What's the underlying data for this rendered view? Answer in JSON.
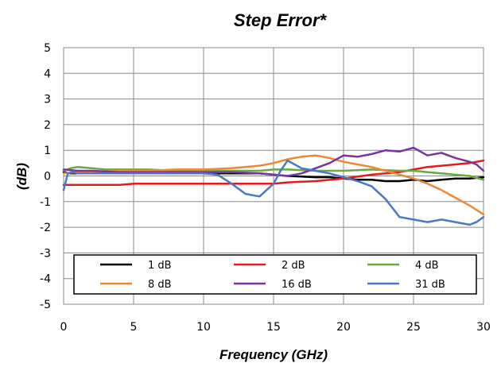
{
  "chart_data": {
    "type": "line",
    "title": "Step Error*",
    "xlabel": "Frequency  (GHz)",
    "ylabel": "(dB)",
    "xlim": [
      0,
      30
    ],
    "ylim": [
      -5,
      5
    ],
    "xticks": [
      0,
      5,
      10,
      15,
      20,
      25,
      30
    ],
    "xtick_labels": [
      "0",
      "5",
      "10",
      "15",
      "20",
      "25",
      "30"
    ],
    "yticks": [
      5,
      4,
      3,
      2,
      1,
      0,
      -1,
      -2,
      -3,
      -4,
      -5
    ],
    "ytick_labels": [
      "5",
      "4",
      "3",
      "2",
      "1",
      "0",
      "-1",
      "-2",
      "-3",
      "-4",
      "-5"
    ],
    "grid": true,
    "legend_position": "bottom-inside",
    "series": [
      {
        "name": "1 dB",
        "color": "#000000",
        "x": [
          0,
          0.5,
          1,
          2,
          4,
          6,
          8,
          10,
          12,
          14,
          15,
          16,
          18,
          19,
          20,
          21,
          22,
          23,
          24,
          25,
          26,
          27,
          28,
          29,
          30
        ],
        "y": [
          0.15,
          0.1,
          0.1,
          0.15,
          0.1,
          0.1,
          0.15,
          0.1,
          0.1,
          0.1,
          0.05,
          0.0,
          -0.05,
          -0.05,
          -0.1,
          -0.15,
          -0.15,
          -0.2,
          -0.2,
          -0.15,
          -0.2,
          -0.15,
          -0.1,
          -0.1,
          -0.05
        ]
      },
      {
        "name": "2 dB",
        "color": "#e8191c",
        "x": [
          0,
          2,
          4,
          5,
          6,
          8,
          10,
          12,
          14,
          15,
          16,
          18,
          20,
          22,
          24,
          25,
          26,
          27,
          28,
          29,
          29.5,
          30
        ],
        "y": [
          -0.35,
          -0.35,
          -0.35,
          -0.3,
          -0.3,
          -0.3,
          -0.3,
          -0.3,
          -0.3,
          -0.3,
          -0.25,
          -0.2,
          -0.1,
          0.05,
          0.15,
          0.25,
          0.35,
          0.4,
          0.45,
          0.5,
          0.55,
          0.6
        ]
      },
      {
        "name": "4 dB",
        "color": "#6aa840",
        "x": [
          0,
          0.5,
          1,
          2,
          3,
          4,
          6,
          8,
          10,
          12,
          14,
          15,
          16,
          18,
          20,
          22,
          24,
          25,
          26,
          27,
          28,
          29,
          30
        ],
        "y": [
          0.2,
          0.3,
          0.35,
          0.3,
          0.25,
          0.25,
          0.25,
          0.2,
          0.2,
          0.2,
          0.2,
          0.25,
          0.25,
          0.2,
          0.2,
          0.25,
          0.2,
          0.2,
          0.15,
          0.1,
          0.05,
          0.0,
          -0.15
        ]
      },
      {
        "name": "8 dB",
        "color": "#ee8833",
        "x": [
          0,
          1,
          2,
          4,
          6,
          8,
          10,
          12,
          14,
          15,
          16,
          17,
          18,
          19,
          20,
          21,
          22,
          23,
          24,
          25,
          26,
          27,
          28,
          29,
          30
        ],
        "y": [
          0.1,
          0.15,
          0.15,
          0.2,
          0.2,
          0.25,
          0.25,
          0.3,
          0.4,
          0.5,
          0.65,
          0.75,
          0.8,
          0.7,
          0.55,
          0.45,
          0.35,
          0.2,
          0.05,
          -0.1,
          -0.3,
          -0.55,
          -0.85,
          -1.15,
          -1.5
        ]
      },
      {
        "name": "16 dB",
        "color": "#7a34a0",
        "x": [
          0,
          1,
          2,
          4,
          6,
          8,
          10,
          12,
          14,
          15,
          16,
          17,
          18,
          19,
          20,
          21,
          22,
          23,
          24,
          25,
          26,
          27,
          28,
          29,
          29.5,
          30
        ],
        "y": [
          0.25,
          0.2,
          0.2,
          0.15,
          0.15,
          0.15,
          0.15,
          0.15,
          0.1,
          0.05,
          0.0,
          0.1,
          0.3,
          0.5,
          0.8,
          0.75,
          0.85,
          1.0,
          0.95,
          1.1,
          0.8,
          0.9,
          0.7,
          0.55,
          0.45,
          0.2
        ]
      },
      {
        "name": "31 dB",
        "color": "#4878c8",
        "x": [
          0,
          0.3,
          0.6,
          1,
          2,
          4,
          6,
          8,
          10,
          11,
          12,
          13,
          14,
          15,
          15.5,
          16,
          17,
          18,
          19,
          20,
          21,
          22,
          23,
          24,
          25,
          26,
          27,
          28,
          29,
          29.5,
          30
        ],
        "y": [
          -0.55,
          0.1,
          0.15,
          0.1,
          0.1,
          0.1,
          0.1,
          0.1,
          0.1,
          0.05,
          -0.3,
          -0.7,
          -0.8,
          -0.3,
          0.2,
          0.6,
          0.3,
          0.2,
          0.1,
          -0.05,
          -0.2,
          -0.4,
          -0.9,
          -1.6,
          -1.7,
          -1.8,
          -1.7,
          -1.8,
          -1.9,
          -1.8,
          -1.6
        ]
      }
    ]
  }
}
